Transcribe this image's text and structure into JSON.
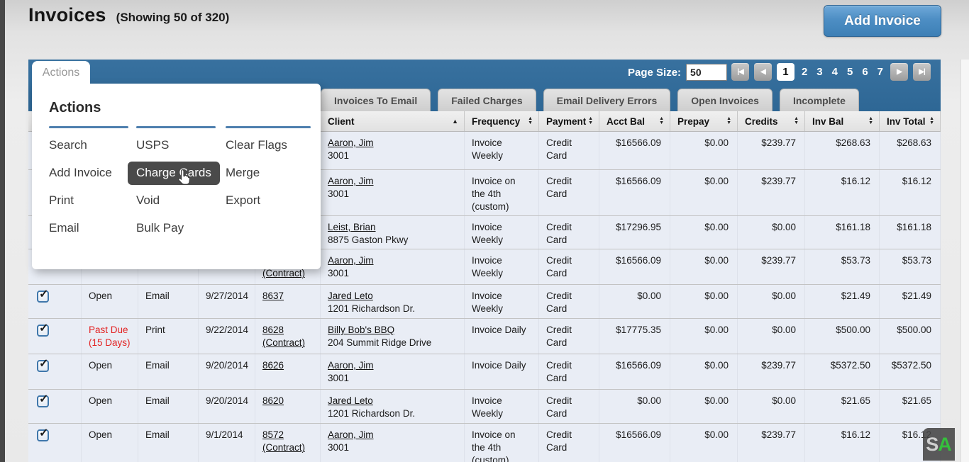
{
  "page": {
    "title": "Invoices",
    "subtitle": "(Showing 50 of 320)",
    "add_invoice_label": "Add Invoice"
  },
  "toolbar": {
    "actions_tab_label": "Actions",
    "page_size_label": "Page Size:",
    "page_size_value": "50",
    "pagination": {
      "first_label": "|◀",
      "prev_label": "◀",
      "next_label": "▶",
      "last_label": "▶|",
      "pages": [
        "1",
        "2",
        "3",
        "4",
        "5",
        "6",
        "7"
      ],
      "active_page": "1"
    }
  },
  "actions_menu": {
    "heading": "Actions",
    "columns": [
      {
        "items": [
          {
            "label": "Search",
            "highlighted": false
          },
          {
            "label": "Add Invoice",
            "highlighted": false
          },
          {
            "label": "Print",
            "highlighted": false
          },
          {
            "label": "Email",
            "highlighted": false
          }
        ]
      },
      {
        "items": [
          {
            "label": "USPS",
            "highlighted": false
          },
          {
            "label": "Charge Cards",
            "highlighted": true
          },
          {
            "label": "Void",
            "highlighted": false
          },
          {
            "label": "Bulk Pay",
            "highlighted": false
          }
        ]
      },
      {
        "items": [
          {
            "label": "Clear Flags",
            "highlighted": false
          },
          {
            "label": "Merge",
            "highlighted": false
          },
          {
            "label": "Export",
            "highlighted": false
          }
        ]
      }
    ]
  },
  "tabs": [
    {
      "label": "Invoices To Email"
    },
    {
      "label": "Failed Charges"
    },
    {
      "label": "Email Delivery Errors"
    },
    {
      "label": "Open Invoices"
    },
    {
      "label": "Incomplete"
    }
  ],
  "table": {
    "headers": [
      {
        "label": "",
        "sort": ""
      },
      {
        "label": "",
        "sort": ""
      },
      {
        "label": "",
        "sort": ""
      },
      {
        "label": "",
        "sort": ""
      },
      {
        "label": "",
        "sort": ""
      },
      {
        "label": "Client",
        "sort": "asc"
      },
      {
        "label": "Frequency",
        "sort": "both"
      },
      {
        "label": "Payment",
        "sort": "both"
      },
      {
        "label": "Acct Bal",
        "sort": "both"
      },
      {
        "label": "Prepay",
        "sort": "both"
      },
      {
        "label": "Credits",
        "sort": "both"
      },
      {
        "label": "Inv Bal",
        "sort": "both"
      },
      {
        "label": "Inv Total",
        "sort": "both"
      }
    ],
    "rows": [
      {
        "checked": null,
        "status": "",
        "status_color": "",
        "delivery": "",
        "date": "",
        "invoice": "",
        "client_name": "Aaron, Jim",
        "client_sub": "3001",
        "frequency": "Invoice\nWeekly",
        "payment": "Credit\nCard",
        "acct_bal": "$16566.09",
        "prepay": "$0.00",
        "credits": "$239.77",
        "inv_bal": "$268.63",
        "inv_total": "$268.63"
      },
      {
        "checked": null,
        "status": "",
        "status_color": "",
        "delivery": "",
        "date": "",
        "invoice": "",
        "client_name": "Aaron, Jim",
        "client_sub": "3001",
        "frequency": "Invoice on\nthe 4th\n(custom)",
        "payment": "Credit\nCard",
        "acct_bal": "$16566.09",
        "prepay": "$0.00",
        "credits": "$239.77",
        "inv_bal": "$16.12",
        "inv_total": "$16.12"
      },
      {
        "checked": null,
        "status": "",
        "status_color": "",
        "delivery": "",
        "date": "",
        "invoice": "",
        "client_name": "Leist, Brian",
        "client_sub": "8875 Gaston Pkwy",
        "frequency": "Invoice\nWeekly",
        "payment": "Credit\nCard",
        "acct_bal": "$17296.95",
        "prepay": "$0.00",
        "credits": "$0.00",
        "inv_bal": "$161.18",
        "inv_total": "$161.18"
      },
      {
        "checked": null,
        "status": "",
        "status_color": "",
        "delivery": "",
        "date": "",
        "invoice": "\n(Contract)",
        "client_name": "Aaron, Jim",
        "client_sub": "3001",
        "frequency": "Invoice\nWeekly",
        "payment": "Credit\nCard",
        "acct_bal": "$16566.09",
        "prepay": "$0.00",
        "credits": "$239.77",
        "inv_bal": "$53.73",
        "inv_total": "$53.73"
      },
      {
        "checked": true,
        "status": "Open",
        "status_color": "",
        "delivery": "Email",
        "date": "9/27/2014",
        "invoice": "8637",
        "client_name": "Jared Leto",
        "client_sub": "1201 Richardson Dr.",
        "frequency": "Invoice\nWeekly",
        "payment": "Credit\nCard",
        "acct_bal": "$0.00",
        "prepay": "$0.00",
        "credits": "$0.00",
        "inv_bal": "$21.49",
        "inv_total": "$21.49"
      },
      {
        "checked": true,
        "status": "Past Due\n(15 Days)",
        "status_color": "red",
        "delivery": "Print",
        "date": "9/22/2014",
        "invoice": "8628\n(Contract)",
        "client_name": "Billy Bob's BBQ",
        "client_sub": "204 Summit Ridge Drive",
        "frequency": "Invoice Daily",
        "payment": "Credit\nCard",
        "acct_bal": "$17775.35",
        "prepay": "$0.00",
        "credits": "$0.00",
        "inv_bal": "$500.00",
        "inv_total": "$500.00"
      },
      {
        "checked": true,
        "status": "Open",
        "status_color": "",
        "delivery": "Email",
        "date": "9/20/2014",
        "invoice": "8626",
        "client_name": "Aaron, Jim",
        "client_sub": "3001",
        "frequency": "Invoice Daily",
        "payment": "Credit\nCard",
        "acct_bal": "$16566.09",
        "prepay": "$0.00",
        "credits": "$239.77",
        "inv_bal": "$5372.50",
        "inv_total": "$5372.50"
      },
      {
        "checked": true,
        "status": "Open",
        "status_color": "",
        "delivery": "Email",
        "date": "9/20/2014",
        "invoice": "8620",
        "client_name": "Jared Leto",
        "client_sub": "1201 Richardson Dr.",
        "frequency": "Invoice\nWeekly",
        "payment": "Credit\nCard",
        "acct_bal": "$0.00",
        "prepay": "$0.00",
        "credits": "$0.00",
        "inv_bal": "$21.65",
        "inv_total": "$21.65"
      },
      {
        "checked": true,
        "status": "Open",
        "status_color": "",
        "delivery": "Email",
        "date": "9/1/2014",
        "invoice": "8572\n(Contract)",
        "client_name": "Aaron, Jim",
        "client_sub": "3001",
        "frequency": "Invoice on\nthe 4th\n(custom)",
        "payment": "Credit\nCard",
        "acct_bal": "$16566.09",
        "prepay": "$0.00",
        "credits": "$239.77",
        "inv_bal": "$16.12",
        "inv_total": "$16.12"
      }
    ]
  },
  "watermark": {
    "letter_s": "S",
    "letter_a": "A"
  },
  "colors": {
    "header_blue": "#2f6997",
    "accent_blue": "#4e7fae",
    "button_blue": "#4d8ec4",
    "past_due_red": "#e32222",
    "highlight_dark": "#4a4a4a"
  }
}
